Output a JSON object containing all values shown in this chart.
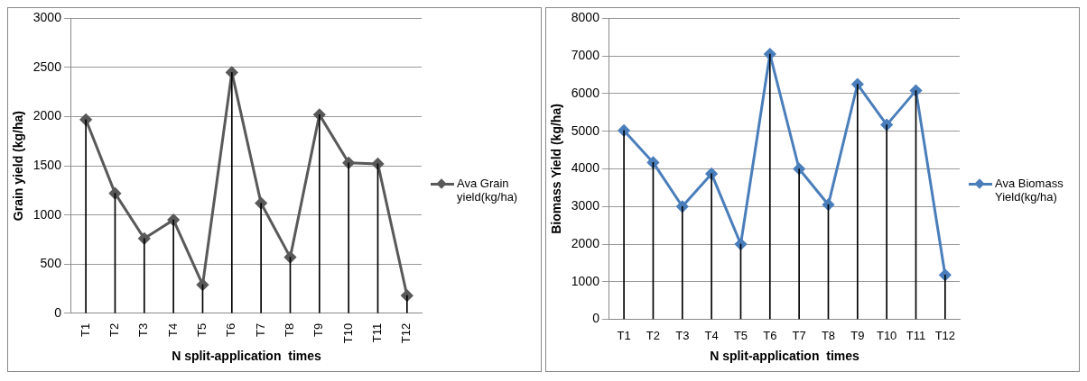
{
  "chart_data": [
    {
      "type": "line",
      "xlabel": "N split-application  times",
      "ylabel": "Grain yield (kg/ha)",
      "categories": [
        "T1",
        "T2",
        "T3",
        "T4",
        "T5",
        "T6",
        "T7",
        "T8",
        "T9",
        "T10",
        "T11",
        "T12"
      ],
      "series": [
        {
          "type": "bar",
          "color": "#000000",
          "values": [
            1970,
            1220,
            760,
            950,
            290,
            2450,
            1120,
            570,
            2020,
            1530,
            1520,
            180
          ]
        },
        {
          "name": "Ava Grain yield(kg/ha)",
          "color": "#595959",
          "values": [
            1970,
            1220,
            760,
            950,
            290,
            2450,
            1120,
            570,
            2020,
            1530,
            1520,
            180
          ]
        }
      ],
      "ylim": [
        0,
        3000
      ],
      "yticks": [
        0,
        500,
        1000,
        1500,
        2000,
        2500,
        3000
      ],
      "grid": "y",
      "legend": "right",
      "marker": "diamond",
      "line_style": "solid"
    },
    {
      "type": "line",
      "xlabel": "N split-application  times",
      "ylabel": "Biomass Yield (kg/ha)",
      "categories": [
        "T1",
        "T2",
        "T3",
        "T4",
        "T5",
        "T6",
        "T7",
        "T8",
        "T9",
        "T10",
        "T11",
        "T12"
      ],
      "series": [
        {
          "type": "bar",
          "color": "#000000",
          "values": [
            5020,
            4170,
            3000,
            3870,
            2000,
            7050,
            4000,
            3050,
            6250,
            5170,
            6080,
            1180
          ]
        },
        {
          "name": "Ava Biomass Yield(kg/ha)",
          "color": "#4a7ebb",
          "values": [
            5020,
            4170,
            3000,
            3870,
            2000,
            7050,
            4000,
            3050,
            6250,
            5170,
            6080,
            1180
          ]
        }
      ],
      "ylim": [
        0,
        8000
      ],
      "yticks": [
        0,
        1000,
        2000,
        3000,
        4000,
        5000,
        6000,
        7000,
        8000
      ],
      "grid": "y",
      "legend": "right",
      "marker": "diamond",
      "line_style": "solid"
    }
  ]
}
